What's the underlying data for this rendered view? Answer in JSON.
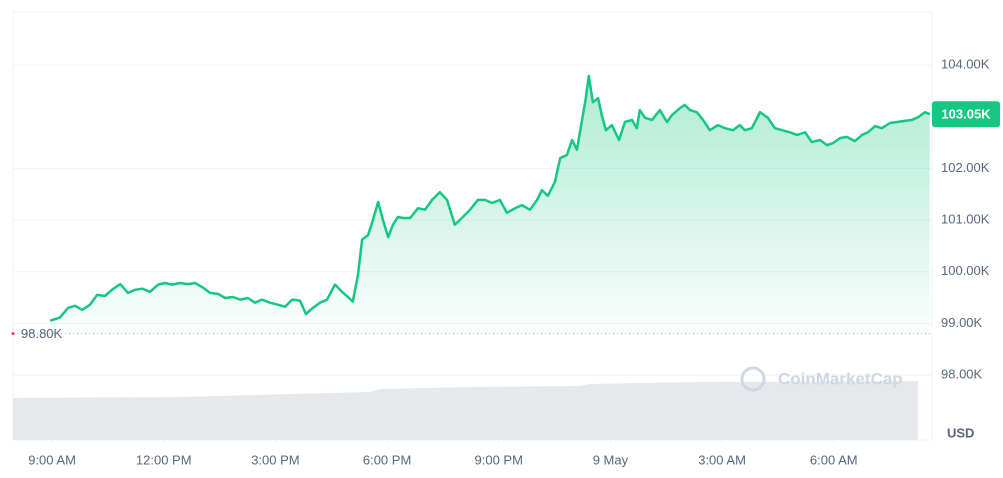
{
  "chart_data": {
    "type": "area",
    "watermark": "CoinMarketCap",
    "currency_label": "USD",
    "color": "#16c784",
    "grid": true,
    "xlim": [
      7.95,
      32.64
    ],
    "xticks": [
      {
        "value": 9,
        "label": "9:00 AM"
      },
      {
        "value": 12,
        "label": "12:00 PM"
      },
      {
        "value": 15,
        "label": "3:00 PM"
      },
      {
        "value": 18,
        "label": "6:00 PM"
      },
      {
        "value": 21,
        "label": "9:00 PM"
      },
      {
        "value": 24,
        "label": "9 May"
      },
      {
        "value": 27,
        "label": "3:00 AM"
      },
      {
        "value": 30,
        "label": "6:00 AM"
      }
    ],
    "ylim": [
      96740,
      105030
    ],
    "yticks": [
      {
        "value": 98000,
        "label": "98.00K"
      },
      {
        "value": 99000,
        "label": "99.00K"
      },
      {
        "value": 100000,
        "label": "100.00K"
      },
      {
        "value": 101000,
        "label": "101.00K"
      },
      {
        "value": 102000,
        "label": "102.00K"
      },
      {
        "value": 104000,
        "label": "104.00K"
      }
    ],
    "reference_price": {
      "value": 98800,
      "label": "98.80K"
    },
    "current_price": {
      "value": 103050,
      "label": "103.05K"
    },
    "x": [
      8.95,
      9.21,
      9.43,
      9.62,
      9.81,
      10.02,
      10.21,
      10.42,
      10.61,
      10.83,
      11.04,
      11.23,
      11.42,
      11.63,
      11.85,
      12.04,
      12.22,
      12.44,
      12.65,
      12.84,
      13.06,
      13.24,
      13.46,
      13.65,
      13.86,
      14.05,
      14.26,
      14.45,
      14.64,
      14.85,
      15.07,
      15.26,
      15.45,
      15.66,
      15.82,
      16.01,
      16.2,
      16.39,
      16.6,
      16.79,
      16.95,
      17.08,
      17.22,
      17.33,
      17.49,
      17.62,
      17.76,
      17.89,
      18.03,
      18.16,
      18.29,
      18.43,
      18.62,
      18.83,
      19.02,
      19.21,
      19.42,
      19.61,
      19.82,
      20.01,
      20.23,
      20.44,
      20.63,
      20.82,
      21.03,
      21.22,
      21.44,
      21.62,
      21.84,
      22.03,
      22.16,
      22.32,
      22.51,
      22.65,
      22.83,
      22.97,
      23.1,
      23.24,
      23.34,
      23.42,
      23.53,
      23.67,
      23.77,
      23.88,
      24.04,
      24.23,
      24.39,
      24.58,
      24.71,
      24.79,
      24.93,
      25.12,
      25.33,
      25.52,
      25.65,
      25.87,
      26.0,
      26.14,
      26.32,
      26.49,
      26.67,
      26.89,
      27.08,
      27.29,
      27.48,
      27.61,
      27.8,
      28.02,
      28.23,
      28.42,
      28.61,
      28.82,
      29.01,
      29.23,
      29.41,
      29.63,
      29.82,
      29.98,
      30.17,
      30.35,
      30.57,
      30.76,
      30.92,
      31.11,
      31.29,
      31.51,
      31.7,
      31.91,
      32.1,
      32.26,
      32.45,
      32.58
    ],
    "values": [
      99050,
      99110,
      99300,
      99340,
      99260,
      99360,
      99550,
      99530,
      99650,
      99760,
      99590,
      99650,
      99670,
      99610,
      99750,
      99780,
      99750,
      99780,
      99760,
      99780,
      99690,
      99590,
      99570,
      99490,
      99510,
      99460,
      99490,
      99400,
      99460,
      99400,
      99360,
      99320,
      99460,
      99440,
      99180,
      99300,
      99400,
      99460,
      99750,
      99610,
      99510,
      99420,
      99940,
      100620,
      100710,
      101000,
      101350,
      101000,
      100670,
      100910,
      101060,
      101040,
      101040,
      101230,
      101200,
      101390,
      101540,
      101390,
      100910,
      101040,
      101200,
      101390,
      101390,
      101330,
      101390,
      101140,
      101230,
      101290,
      101200,
      101390,
      101580,
      101470,
      101740,
      102200,
      102260,
      102550,
      102360,
      102940,
      103360,
      103790,
      103280,
      103360,
      103030,
      102740,
      102840,
      102550,
      102900,
      102940,
      102780,
      103130,
      102980,
      102940,
      103130,
      102900,
      103030,
      103170,
      103230,
      103130,
      103090,
      102940,
      102740,
      102840,
      102780,
      102740,
      102840,
      102740,
      102780,
      103090,
      102980,
      102780,
      102740,
      102700,
      102650,
      102700,
      102510,
      102550,
      102450,
      102490,
      102590,
      102610,
      102530,
      102650,
      102700,
      102820,
      102780,
      102880,
      102900,
      102920,
      102940,
      102990,
      103090,
      103050
    ]
  }
}
